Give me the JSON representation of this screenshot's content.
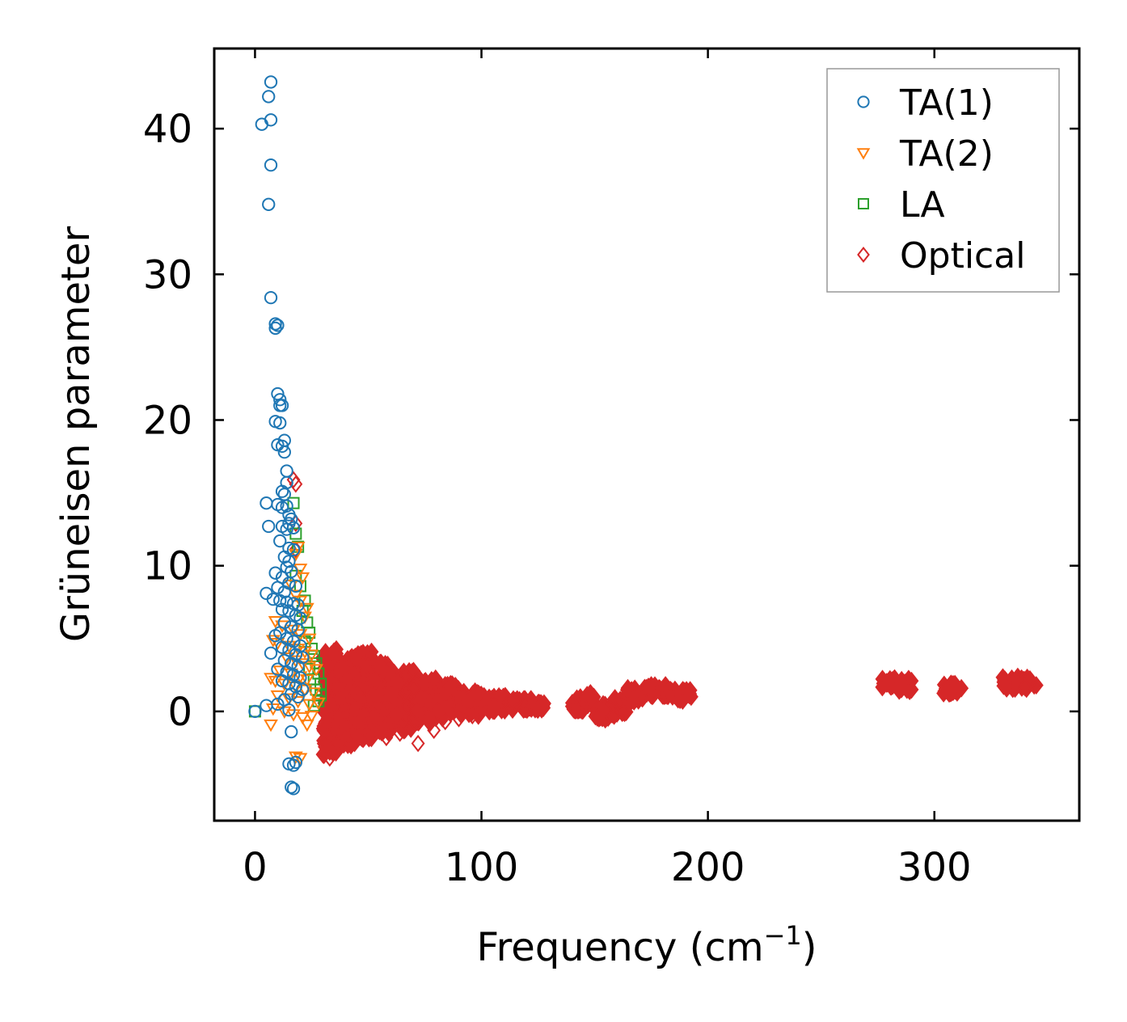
{
  "chart_data": {
    "type": "scatter",
    "title": "",
    "xlabel": "Frequency (cm",
    "xlabel_sup": "−1",
    "xlabel_close": ")",
    "ylabel": "Grüneisen parameter",
    "xlim": [
      -18,
      364
    ],
    "ylim": [
      -7.5,
      45.5
    ],
    "xticks": [
      0,
      100,
      200,
      300
    ],
    "xtick_labels": [
      "0",
      "100",
      "200",
      "300"
    ],
    "yticks": [
      0,
      10,
      20,
      30,
      40
    ],
    "ytick_labels": [
      "0",
      "10",
      "20",
      "30",
      "40"
    ],
    "grid": false,
    "legend_position": "top-right",
    "series": [
      {
        "name": "TA(1)",
        "marker": "circle",
        "color": "#1f77b4",
        "points": [
          [
            7,
            43.2
          ],
          [
            6,
            42.2
          ],
          [
            7,
            40.6
          ],
          [
            3,
            40.3
          ],
          [
            7,
            37.5
          ],
          [
            6,
            34.8
          ],
          [
            7,
            28.4
          ],
          [
            9,
            26.6
          ],
          [
            10,
            26.5
          ],
          [
            9,
            26.3
          ],
          [
            10,
            21.8
          ],
          [
            11,
            21.4
          ],
          [
            11,
            21.0
          ],
          [
            12,
            21.0
          ],
          [
            9,
            19.9
          ],
          [
            11,
            19.8
          ],
          [
            10,
            18.3
          ],
          [
            13,
            18.6
          ],
          [
            12,
            18.2
          ],
          [
            13,
            17.8
          ],
          [
            14,
            16.5
          ],
          [
            14,
            15.7
          ],
          [
            12,
            15.1
          ],
          [
            13,
            14.9
          ],
          [
            5,
            14.3
          ],
          [
            10,
            14.2
          ],
          [
            12,
            14.0
          ],
          [
            14,
            14.1
          ],
          [
            15,
            13.5
          ],
          [
            16,
            13.2
          ],
          [
            15,
            12.9
          ],
          [
            14,
            12.5
          ],
          [
            6,
            12.7
          ],
          [
            12,
            12.7
          ],
          [
            17,
            12.6
          ],
          [
            11,
            11.7
          ],
          [
            15,
            11.2
          ],
          [
            17,
            11.1
          ],
          [
            13,
            10.6
          ],
          [
            15,
            10.3
          ],
          [
            14,
            9.9
          ],
          [
            16,
            9.6
          ],
          [
            9,
            9.5
          ],
          [
            12,
            9.2
          ],
          [
            15,
            8.8
          ],
          [
            18,
            8.6
          ],
          [
            10,
            8.5
          ],
          [
            13,
            8.2
          ],
          [
            5,
            8.1
          ],
          [
            8,
            7.7
          ],
          [
            11,
            7.6
          ],
          [
            14,
            7.5
          ],
          [
            17,
            7.4
          ],
          [
            19,
            7.3
          ],
          [
            12,
            7.0
          ],
          [
            15,
            6.9
          ],
          [
            18,
            6.6
          ],
          [
            20,
            6.4
          ],
          [
            13,
            6.1
          ],
          [
            16,
            5.8
          ],
          [
            19,
            5.6
          ],
          [
            11,
            5.4
          ],
          [
            9,
            5.2
          ],
          [
            14,
            5.0
          ],
          [
            17,
            4.8
          ],
          [
            20,
            4.5
          ],
          [
            12,
            4.4
          ],
          [
            15,
            4.2
          ],
          [
            7,
            4.0
          ],
          [
            18,
            3.9
          ],
          [
            21,
            3.7
          ],
          [
            13,
            3.5
          ],
          [
            16,
            3.3
          ],
          [
            19,
            3.1
          ],
          [
            10,
            2.9
          ],
          [
            14,
            2.7
          ],
          [
            17,
            2.5
          ],
          [
            20,
            2.3
          ],
          [
            12,
            2.1
          ],
          [
            15,
            1.9
          ],
          [
            18,
            1.7
          ],
          [
            21,
            1.5
          ],
          [
            16,
            1.2
          ],
          [
            19,
            1.0
          ],
          [
            13,
            0.8
          ],
          [
            10,
            0.5
          ],
          [
            5,
            0.4
          ],
          [
            15,
            0.1
          ],
          [
            0,
            0.0
          ],
          [
            16,
            -1.4
          ],
          [
            15,
            -3.6
          ],
          [
            18,
            -3.5
          ],
          [
            17,
            -3.7
          ],
          [
            16,
            -5.2
          ],
          [
            17,
            -5.3
          ]
        ]
      },
      {
        "name": "TA(2)",
        "marker": "triangle-down",
        "color": "#ff7f0e",
        "points": [
          [
            19,
            11.3
          ],
          [
            18,
            10.8
          ],
          [
            20,
            9.8
          ],
          [
            21,
            9.2
          ],
          [
            16,
            8.7
          ],
          [
            18,
            8.0
          ],
          [
            20,
            7.6
          ],
          [
            23,
            7.1
          ],
          [
            22,
            6.5
          ],
          [
            9,
            6.2
          ],
          [
            12,
            5.9
          ],
          [
            17,
            5.6
          ],
          [
            20,
            5.3
          ],
          [
            24,
            5.0
          ],
          [
            8,
            4.9
          ],
          [
            10,
            4.7
          ],
          [
            15,
            4.5
          ],
          [
            19,
            4.3
          ],
          [
            22,
            4.1
          ],
          [
            25,
            3.9
          ],
          [
            14,
            3.7
          ],
          [
            18,
            3.5
          ],
          [
            21,
            3.3
          ],
          [
            24,
            3.1
          ],
          [
            27,
            2.9
          ],
          [
            11,
            2.8
          ],
          [
            16,
            2.6
          ],
          [
            20,
            2.4
          ],
          [
            23,
            2.2
          ],
          [
            7,
            2.3
          ],
          [
            9,
            2.1
          ],
          [
            13,
            1.9
          ],
          [
            18,
            1.7
          ],
          [
            22,
            1.5
          ],
          [
            26,
            1.3
          ],
          [
            10,
            1.1
          ],
          [
            15,
            0.9
          ],
          [
            19,
            0.7
          ],
          [
            24,
            0.5
          ],
          [
            28,
            0.6
          ],
          [
            8,
            0.2
          ],
          [
            13,
            0.0
          ],
          [
            17,
            -0.2
          ],
          [
            21,
            -0.4
          ],
          [
            25,
            -0.3
          ],
          [
            7,
            -0.9
          ],
          [
            23,
            -0.9
          ],
          [
            18,
            -3.1
          ],
          [
            20,
            -3.2
          ]
        ]
      },
      {
        "name": "LA",
        "marker": "square",
        "color": "#2ca02c",
        "points": [
          [
            17,
            14.3
          ],
          [
            18,
            12.2
          ],
          [
            19,
            11.3
          ],
          [
            18,
            9.3
          ],
          [
            20,
            8.6
          ],
          [
            22,
            7.6
          ],
          [
            21,
            6.9
          ],
          [
            23,
            6.1
          ],
          [
            24,
            5.4
          ],
          [
            22,
            4.8
          ],
          [
            25,
            4.3
          ],
          [
            26,
            3.8
          ],
          [
            27,
            3.3
          ],
          [
            24,
            2.9
          ],
          [
            28,
            2.6
          ],
          [
            26,
            2.2
          ],
          [
            29,
            1.9
          ],
          [
            27,
            1.5
          ],
          [
            29,
            1.1
          ],
          [
            28,
            0.7
          ],
          [
            26,
            0.4
          ],
          [
            0,
            0.0
          ]
        ]
      },
      {
        "name": "Optical",
        "marker": "diamond",
        "color": "#d62728",
        "points": [
          [
            17,
            15.9
          ],
          [
            18,
            15.6
          ],
          [
            18,
            12.9
          ],
          [
            18,
            11.1
          ],
          [
            33,
            -3.2
          ],
          [
            34,
            -2.8
          ],
          [
            36,
            -2.3
          ],
          [
            40,
            -1.9
          ],
          [
            45,
            -1.6
          ],
          [
            52,
            -1.2
          ],
          [
            58,
            -1.8
          ],
          [
            64,
            -1.5
          ],
          [
            72,
            -2.2
          ],
          [
            79,
            -1.3
          ],
          [
            84,
            -0.7
          ],
          [
            90,
            -0.5
          ],
          [
            96,
            -0.3
          ]
        ]
      }
    ],
    "optical_bands": [
      {
        "x0": 30,
        "x1": 36,
        "ymin": -3.0,
        "ymax": 4.3
      },
      {
        "x0": 36,
        "x1": 44,
        "ymin": -2.4,
        "ymax": 3.8
      },
      {
        "x0": 44,
        "x1": 52,
        "ymin": -1.9,
        "ymax": 4.1
      },
      {
        "x0": 52,
        "x1": 60,
        "ymin": -1.5,
        "ymax": 3.4
      },
      {
        "x0": 60,
        "x1": 70,
        "ymin": -1.3,
        "ymax": 2.8
      },
      {
        "x0": 70,
        "x1": 80,
        "ymin": -0.8,
        "ymax": 2.3
      },
      {
        "x0": 80,
        "x1": 90,
        "ymin": -0.5,
        "ymax": 1.9
      },
      {
        "x0": 90,
        "x1": 100,
        "ymin": -0.3,
        "ymax": 1.4
      },
      {
        "x0": 100,
        "x1": 112,
        "ymin": 0.0,
        "ymax": 1.1
      },
      {
        "x0": 112,
        "x1": 122,
        "ymin": 0.1,
        "ymax": 0.9
      },
      {
        "x0": 122,
        "x1": 128,
        "ymin": 0.1,
        "ymax": 0.6
      },
      {
        "x0": 140,
        "x1": 146,
        "ymin": 0.0,
        "ymax": 1.0
      },
      {
        "x0": 146,
        "x1": 150,
        "ymin": 0.3,
        "ymax": 1.3
      },
      {
        "x0": 150,
        "x1": 158,
        "ymin": -0.6,
        "ymax": 0.5
      },
      {
        "x0": 158,
        "x1": 164,
        "ymin": -0.3,
        "ymax": 1.1
      },
      {
        "x0": 164,
        "x1": 172,
        "ymin": 0.6,
        "ymax": 1.6
      },
      {
        "x0": 172,
        "x1": 182,
        "ymin": 0.9,
        "ymax": 1.8
      },
      {
        "x0": 182,
        "x1": 193,
        "ymin": 0.7,
        "ymax": 1.5
      },
      {
        "x0": 277,
        "x1": 290,
        "ymin": 1.4,
        "ymax": 2.3
      },
      {
        "x0": 304,
        "x1": 312,
        "ymin": 1.2,
        "ymax": 1.9
      },
      {
        "x0": 330,
        "x1": 345,
        "ymin": 1.5,
        "ymax": 2.4
      }
    ]
  }
}
